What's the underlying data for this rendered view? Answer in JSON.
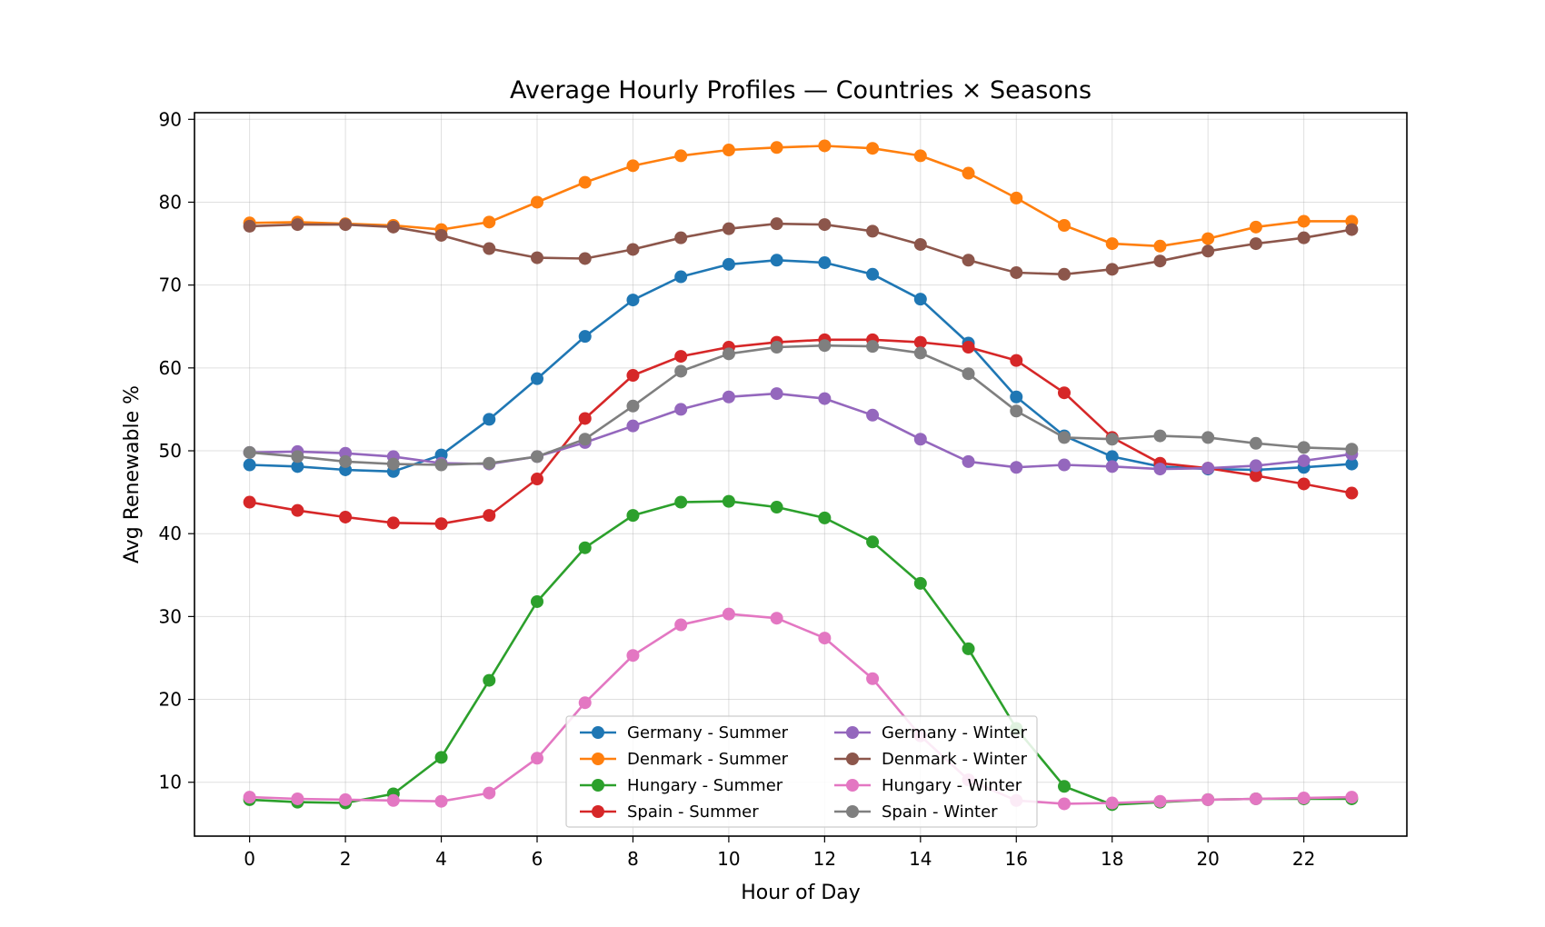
{
  "chart_data": {
    "type": "line",
    "title": "Average Hourly Profiles — Countries × Seasons",
    "xlabel": "Hour of Day",
    "ylabel": "Avg Renewable %",
    "xlim": [
      -1.15,
      24.15
    ],
    "ylim": [
      3.5,
      90.8
    ],
    "xticks": [
      0,
      2,
      4,
      6,
      8,
      10,
      12,
      14,
      16,
      18,
      20,
      22
    ],
    "yticks": [
      10,
      20,
      30,
      40,
      50,
      60,
      70,
      80,
      90
    ],
    "grid": true,
    "legend_position": "lower-center",
    "x": [
      0,
      1,
      2,
      3,
      4,
      5,
      6,
      7,
      8,
      9,
      10,
      11,
      12,
      13,
      14,
      15,
      16,
      17,
      18,
      19,
      20,
      21,
      22,
      23
    ],
    "series": [
      {
        "name": "Germany - Summer",
        "color": "#1f77b4",
        "values": [
          48.3,
          48.1,
          47.7,
          47.5,
          49.5,
          53.8,
          58.7,
          63.8,
          68.2,
          71.0,
          72.5,
          73.0,
          72.7,
          71.3,
          68.3,
          63.0,
          56.5,
          51.8,
          49.3,
          48.1,
          47.8,
          47.7,
          48.0,
          48.4
        ]
      },
      {
        "name": "Denmark - Summer",
        "color": "#ff7f0e",
        "values": [
          77.5,
          77.6,
          77.4,
          77.2,
          76.7,
          77.6,
          80.0,
          82.4,
          84.4,
          85.6,
          86.3,
          86.6,
          86.8,
          86.5,
          85.6,
          83.5,
          80.5,
          77.2,
          75.0,
          74.7,
          75.6,
          77.0,
          77.7,
          77.7
        ]
      },
      {
        "name": "Hungary - Summer",
        "color": "#2ca02c",
        "values": [
          7.9,
          7.6,
          7.5,
          8.6,
          13.0,
          22.3,
          31.8,
          38.3,
          42.2,
          43.8,
          43.9,
          43.2,
          41.9,
          39.0,
          34.0,
          26.1,
          16.5,
          9.5,
          7.3,
          7.6,
          7.9,
          8.0,
          8.0,
          8.0
        ]
      },
      {
        "name": "Spain - Summer",
        "color": "#d62728",
        "values": [
          43.8,
          42.8,
          42.0,
          41.3,
          41.2,
          42.2,
          46.6,
          53.9,
          59.1,
          61.4,
          62.5,
          63.1,
          63.4,
          63.4,
          63.1,
          62.5,
          60.9,
          57.0,
          51.6,
          48.5,
          47.9,
          47.0,
          46.0,
          44.9
        ]
      },
      {
        "name": "Germany - Winter",
        "color": "#9467bd",
        "values": [
          49.8,
          49.9,
          49.7,
          49.3,
          48.5,
          48.4,
          49.3,
          51.0,
          53.0,
          55.0,
          56.5,
          56.9,
          56.3,
          54.3,
          51.4,
          48.7,
          48.0,
          48.3,
          48.1,
          47.8,
          47.9,
          48.2,
          48.8,
          49.6
        ]
      },
      {
        "name": "Denmark - Winter",
        "color": "#8c564b",
        "values": [
          77.1,
          77.3,
          77.3,
          77.0,
          76.0,
          74.4,
          73.3,
          73.2,
          74.3,
          75.7,
          76.8,
          77.4,
          77.3,
          76.5,
          74.9,
          73.0,
          71.5,
          71.3,
          71.9,
          72.9,
          74.1,
          75.0,
          75.7,
          76.7
        ]
      },
      {
        "name": "Hungary - Winter",
        "color": "#e377c2",
        "values": [
          8.2,
          8.0,
          7.9,
          7.8,
          7.7,
          8.7,
          12.9,
          19.6,
          25.3,
          29.0,
          30.3,
          29.8,
          27.4,
          22.5,
          15.6,
          10.3,
          7.8,
          7.4,
          7.5,
          7.7,
          7.9,
          8.0,
          8.1,
          8.2
        ]
      },
      {
        "name": "Spain - Winter",
        "color": "#7f7f7f",
        "values": [
          49.8,
          49.3,
          48.7,
          48.4,
          48.3,
          48.5,
          49.3,
          51.4,
          55.4,
          59.6,
          61.7,
          62.5,
          62.7,
          62.6,
          61.8,
          59.3,
          54.8,
          51.6,
          51.4,
          51.8,
          51.6,
          50.9,
          50.4,
          50.2
        ]
      }
    ]
  }
}
